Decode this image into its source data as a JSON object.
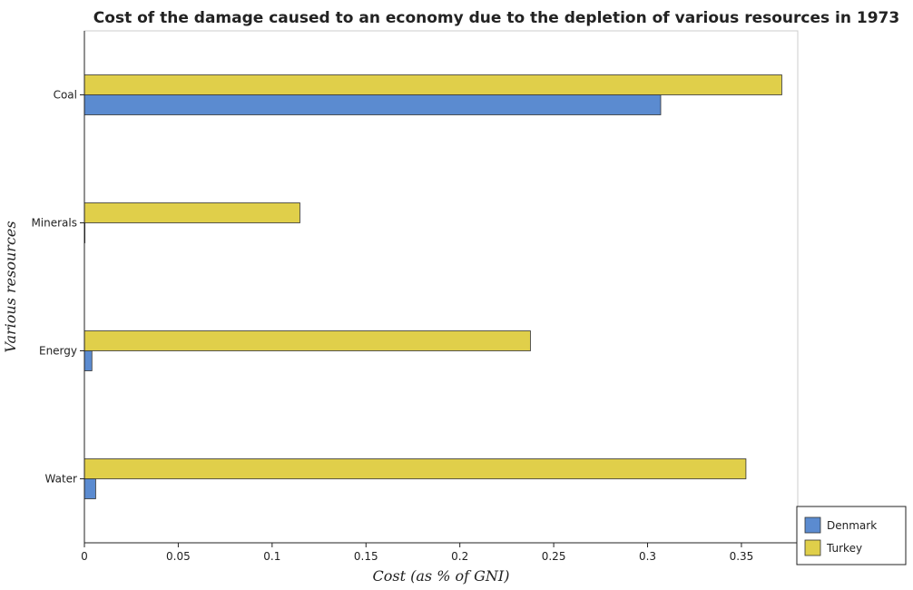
{
  "chart_data": {
    "type": "bar",
    "orientation": "horizontal",
    "title": "Cost of the damage caused to an economy due to the depletion of various resources in 1973",
    "xlabel": "Cost (as % of GNI)",
    "ylabel": "Various resources",
    "categories": [
      "Coal",
      "Minerals",
      "Energy",
      "Water"
    ],
    "series": [
      {
        "name": "Denmark",
        "color": "#5b8bd0",
        "values": [
          0.307,
          0.0003,
          0.004,
          0.006
        ]
      },
      {
        "name": "Turkey",
        "color": "#e0cf4a",
        "values": [
          0.3715,
          0.1148,
          0.2376,
          0.3524
        ]
      }
    ],
    "xlim": [
      0,
      0.38
    ],
    "xticks": [
      "0",
      "0.05",
      "0.1",
      "0.15",
      "0.2",
      "0.25",
      "0.3",
      "0.35"
    ],
    "xtick_values": [
      0,
      0.05,
      0.1,
      0.15,
      0.2,
      0.25,
      0.3,
      0.35
    ],
    "grid": false,
    "legend_position": "bottom-right"
  }
}
